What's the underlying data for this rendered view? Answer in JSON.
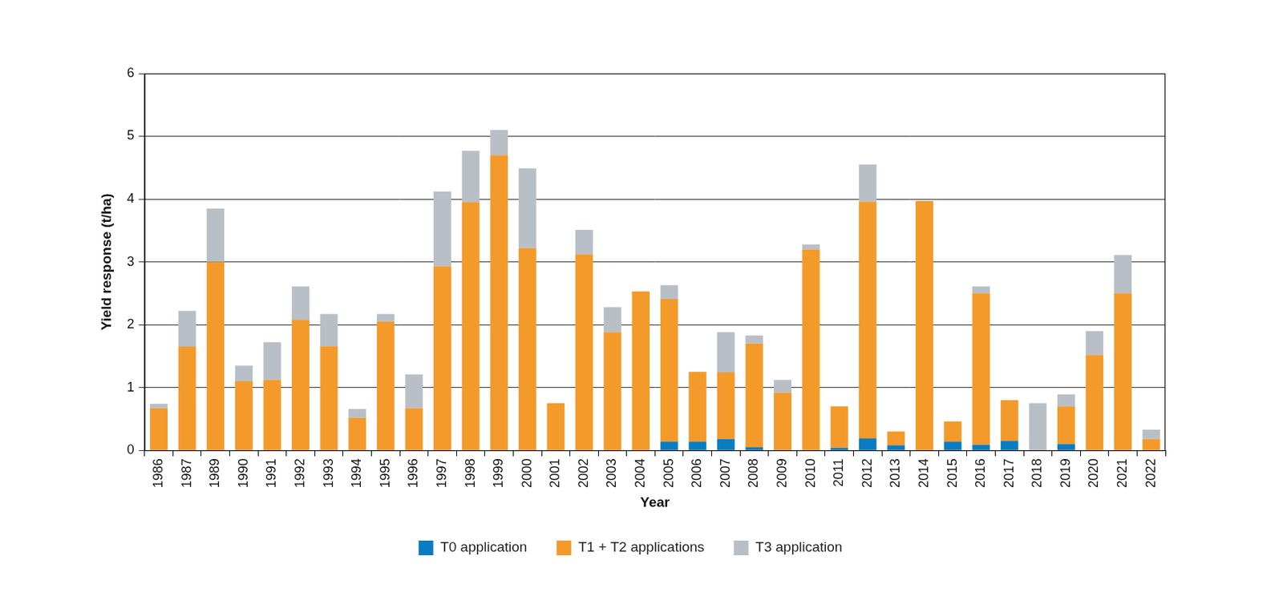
{
  "chart_data": {
    "type": "bar",
    "stacked": true,
    "grid": true,
    "legend": "bottom",
    "x_label": "Year",
    "y_label": "Yield response (t/ha)",
    "categories": [
      "1986",
      "1987",
      "1989",
      "1990",
      "1991",
      "1992",
      "1993",
      "1994",
      "1995",
      "1996",
      "1997",
      "1998",
      "1999",
      "2000",
      "2001",
      "2002",
      "2003",
      "2004",
      "2005",
      "2006",
      "2007",
      "2008",
      "2009",
      "2010",
      "2011",
      "2012",
      "2013",
      "2014",
      "2015",
      "2016",
      "2017",
      "2018",
      "2019",
      "2020",
      "2021",
      "2022"
    ],
    "series": [
      {
        "name": "T0 application",
        "color": "#0a7cc1",
        "values": [
          0,
          0,
          0,
          0,
          0,
          0,
          0,
          0,
          0,
          0,
          0,
          0,
          0,
          0,
          0,
          0,
          0,
          0,
          0.14,
          0.14,
          0.18,
          0.05,
          0,
          0,
          0.04,
          0.19,
          0.08,
          0,
          0.14,
          0.09,
          0.15,
          0,
          0.1,
          0,
          0,
          0
        ]
      },
      {
        "name": "T1 + T2 applications",
        "color": "#f39a2b",
        "values": [
          0.67,
          1.65,
          3.0,
          1.1,
          1.12,
          2.08,
          1.66,
          0.52,
          2.05,
          0.67,
          2.93,
          3.95,
          4.7,
          3.22,
          0.75,
          3.12,
          1.88,
          2.53,
          2.27,
          1.11,
          1.06,
          1.65,
          0.92,
          3.2,
          0.66,
          3.77,
          0.22,
          3.97,
          0.32,
          2.41,
          0.65,
          0,
          0.6,
          1.52,
          2.5,
          0.18
        ]
      },
      {
        "name": "T3 application",
        "color": "#b8bfc7",
        "values": [
          0.07,
          0.57,
          0.85,
          0.25,
          0.6,
          0.53,
          0.51,
          0.14,
          0.12,
          0.54,
          1.19,
          0.82,
          0.4,
          1.27,
          0,
          0.39,
          0.4,
          0,
          0.22,
          0,
          0.64,
          0.13,
          0.2,
          0.08,
          0,
          0.59,
          0,
          0,
          0,
          0.11,
          0,
          0.75,
          0.19,
          0.38,
          0.61,
          0.15
        ]
      }
    ],
    "ylim": [
      0,
      6
    ],
    "yticks": [
      0,
      1,
      2,
      3,
      4,
      5,
      6
    ]
  }
}
